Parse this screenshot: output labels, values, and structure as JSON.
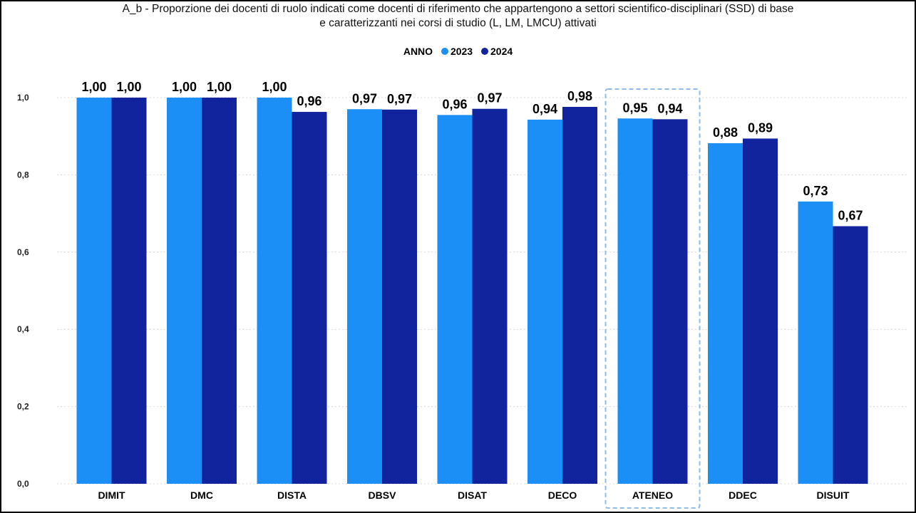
{
  "title_line1": "A_b - Proporzione dei docenti di ruolo indicati come docenti di riferimento che appartengono a settori scientifico-disciplinari (SSD) di base",
  "title_line2": "e caratterizzanti nei corsi di studio (L, LM, LMCU) attivati",
  "legend": {
    "title": "ANNO",
    "items": [
      {
        "label": "2023",
        "color": "#1b8ff5"
      },
      {
        "label": "2024",
        "color": "#12239e"
      }
    ]
  },
  "highlight_category": "ATENEO",
  "chart_data": {
    "type": "bar",
    "categories": [
      "DIMIT",
      "DMC",
      "DISTA",
      "DBSV",
      "DISAT",
      "DECO",
      "ATENEO",
      "DDEC",
      "DISUIT"
    ],
    "series": [
      {
        "name": "2023",
        "color": "#1b8ff5",
        "values": [
          1.0,
          1.0,
          1.0,
          0.97,
          0.955,
          0.943,
          0.946,
          0.882,
          0.731
        ],
        "labels": [
          "1,00",
          "1,00",
          "1,00",
          "0,97",
          "0,96",
          "0,94",
          "0,95",
          "0,88",
          "0,73"
        ]
      },
      {
        "name": "2024",
        "color": "#12239e",
        "values": [
          1.0,
          1.0,
          0.963,
          0.969,
          0.971,
          0.976,
          0.944,
          0.894,
          0.667
        ],
        "labels": [
          "1,00",
          "1,00",
          "0,96",
          "0,97",
          "0,97",
          "0,98",
          "0,94",
          "0,89",
          "0,67"
        ]
      }
    ],
    "ylim": [
      0,
      1
    ],
    "yticks": [
      0.0,
      0.2,
      0.4,
      0.6,
      0.8,
      1.0
    ],
    "ytick_labels": [
      "0,0",
      "0,2",
      "0,4",
      "0,6",
      "0,8",
      "1,0"
    ],
    "grid": true,
    "legend_position": "top-center"
  }
}
